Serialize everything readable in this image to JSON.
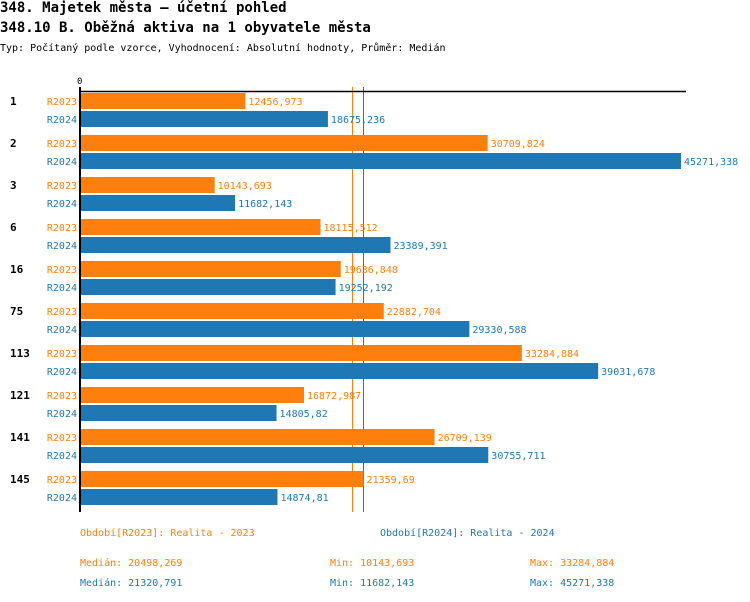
{
  "header": {
    "title": "348. Majetek města – účetní pohled",
    "subtitle": "348.10 B. Oběžná aktiva na 1 obyvatele města",
    "info": "Typ: Počítaný podle vzorce, Vyhodnocení: Absolutní hodnoty, Průměr: Medián"
  },
  "colors": {
    "r2023": "#ff7f0e",
    "r2024": "#1f77b4"
  },
  "chart_data": {
    "type": "bar",
    "orientation": "horizontal",
    "axis_zero_label": "0",
    "categories": [
      "1",
      "2",
      "3",
      "6",
      "16",
      "75",
      "113",
      "121",
      "141",
      "145"
    ],
    "series": [
      {
        "name": "R2023",
        "labels": [
          "12456,973",
          "30709,824",
          "10143,693",
          "18115,512",
          "19636,848",
          "22882,704",
          "33284,884",
          "16872,987",
          "26709,139",
          "21359,69"
        ],
        "values": [
          12456.973,
          30709.824,
          10143.693,
          18115.512,
          19636.848,
          22882.704,
          33284.884,
          16872.987,
          26709.139,
          21359.69
        ]
      },
      {
        "name": "R2024",
        "labels": [
          "18675,236",
          "45271,338",
          "11682,143",
          "23389,391",
          "19252,192",
          "29330,588",
          "39031,678",
          "14805,82",
          "30755,711",
          "14874,81"
        ],
        "values": [
          18675.236,
          45271.338,
          11682.143,
          23389.391,
          19252.192,
          29330.588,
          39031.678,
          14805.82,
          30755.711,
          14874.81
        ]
      }
    ],
    "medians": {
      "R2023": 20498.269,
      "R2024": 21320.791
    },
    "xlim": [
      0,
      45271.338
    ]
  },
  "legend": {
    "r2023": "Období[R2023]: Realita - 2023",
    "r2024": "Období[R2024]: Realita - 2024"
  },
  "stats": {
    "r2023": {
      "median": "Medián: 20498,269",
      "min": "Min: 10143,693",
      "max": "Max: 33284,884"
    },
    "r2024": {
      "median": "Medián: 21320,791",
      "min": "Min: 11682,143",
      "max": "Max: 45271,338"
    }
  }
}
